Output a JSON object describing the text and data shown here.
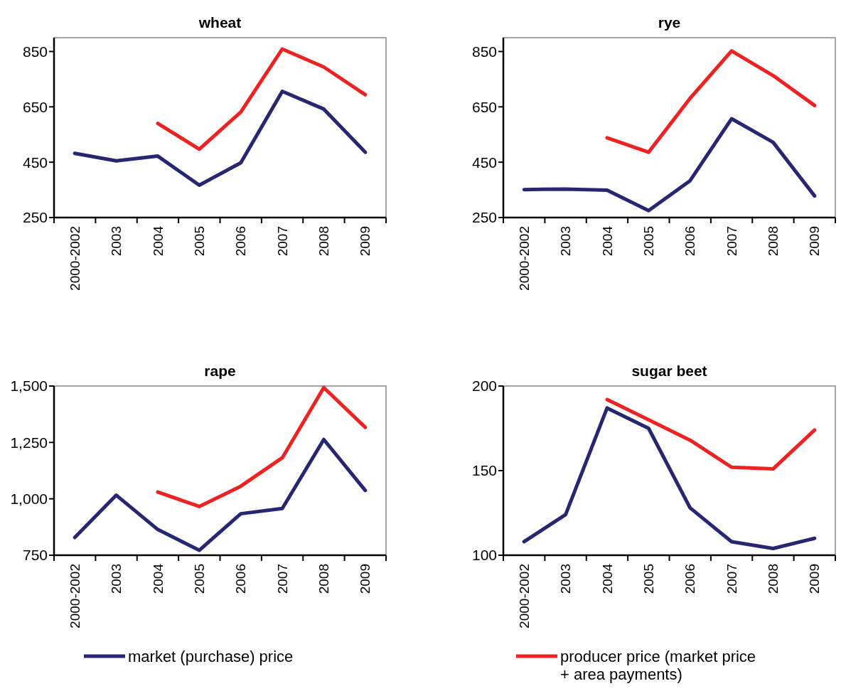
{
  "chart_data": [
    {
      "type": "line",
      "title": "wheat",
      "categories": [
        "2000-2002",
        "2003",
        "2004",
        "2005",
        "2006",
        "2007",
        "2008",
        "2009"
      ],
      "ylim": [
        250,
        900
      ],
      "yticks": [
        250,
        450,
        650,
        850
      ],
      "legend": "bottom",
      "series": [
        {
          "name": "market (purchase) price",
          "color": "#262673",
          "values": [
            482,
            455,
            472,
            367,
            448,
            706,
            642,
            486
          ]
        },
        {
          "name": "producer price (market price + area payments)",
          "color": "#ee2222",
          "values": [
            null,
            null,
            590,
            497,
            631,
            859,
            794,
            694
          ]
        }
      ]
    },
    {
      "type": "line",
      "title": "rye",
      "categories": [
        "2000-2002",
        "2003",
        "2004",
        "2005",
        "2006",
        "2007",
        "2008",
        "2009"
      ],
      "ylim": [
        250,
        900
      ],
      "yticks": [
        250,
        450,
        650,
        850
      ],
      "series": [
        {
          "color": "#262673",
          "values": [
            351,
            353,
            349,
            275,
            383,
            607,
            522,
            328
          ]
        },
        {
          "color": "#ee2222",
          "values": [
            null,
            null,
            538,
            486,
            681,
            852,
            763,
            655
          ]
        }
      ]
    },
    {
      "type": "line",
      "title": "rape",
      "categories": [
        "2000-2002",
        "2003",
        "2004",
        "2005",
        "2006",
        "2007",
        "2008",
        "2009"
      ],
      "ylim": [
        750,
        1500
      ],
      "yticks": [
        750,
        {
          "value": 1000,
          "label": "1,000"
        },
        {
          "value": 1250,
          "label": "1,250"
        },
        {
          "value": 1500,
          "label": "1,500"
        }
      ],
      "series": [
        {
          "color": "#262673",
          "values": [
            829,
            1016,
            864,
            772,
            934,
            957,
            1263,
            1037
          ]
        },
        {
          "color": "#ee2222",
          "values": [
            null,
            null,
            1030,
            966,
            1056,
            1182,
            1493,
            1317
          ]
        }
      ]
    },
    {
      "type": "line",
      "title": "sugar beet",
      "categories": [
        "2000-2002",
        "2003",
        "2004",
        "2005",
        "2006",
        "2007",
        "2008",
        "2009"
      ],
      "ylim": [
        100,
        200
      ],
      "yticks": [
        100,
        150,
        200
      ],
      "series": [
        {
          "color": "#262673",
          "values": [
            108,
            124,
            187,
            175,
            128,
            108,
            104,
            110
          ]
        },
        {
          "color": "#ee2222",
          "values": [
            null,
            null,
            192,
            180,
            168,
            152,
            151,
            174
          ]
        }
      ]
    }
  ]
}
